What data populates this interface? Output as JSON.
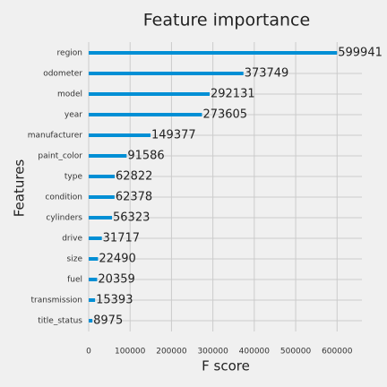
{
  "chart_data": {
    "type": "barh",
    "title": "Feature importance",
    "xlabel": "F score",
    "ylabel": "Features",
    "categories": [
      "region",
      "odometer",
      "model",
      "year",
      "manufacturer",
      "paint_color",
      "type",
      "condition",
      "cylinders",
      "drive",
      "size",
      "fuel",
      "transmission",
      "title_status"
    ],
    "values": [
      599941,
      373749,
      292131,
      273605,
      149377,
      91586,
      62822,
      62378,
      56323,
      31717,
      22490,
      20359,
      15393,
      8975
    ],
    "color": "#008fd5",
    "xlim": [
      0,
      660000
    ],
    "xticks": [
      0,
      100000,
      200000,
      300000,
      400000,
      500000,
      600000
    ],
    "grid": true
  }
}
